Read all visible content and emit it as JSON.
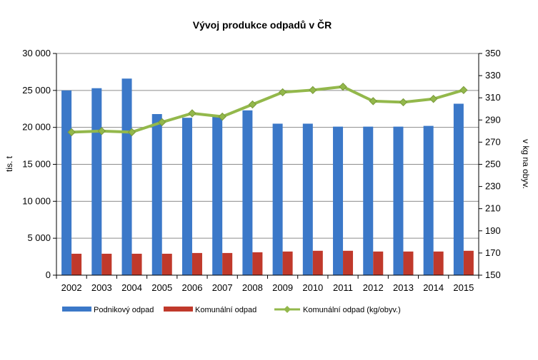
{
  "chart_data": {
    "type": "bar",
    "title": "Vývoj produkce odpadů v ČR",
    "ylabel_left": "tis. t",
    "ylabel_right": "v kg na obyv.",
    "categories": [
      "2002",
      "2003",
      "2004",
      "2005",
      "2006",
      "2007",
      "2008",
      "2009",
      "2010",
      "2011",
      "2012",
      "2013",
      "2014",
      "2015"
    ],
    "ylim_left": [
      0,
      30000
    ],
    "ylim_right": [
      150,
      350
    ],
    "yticks_left": [
      "0",
      "5 000",
      "10 000",
      "15 000",
      "20 000",
      "25 000",
      "30 000"
    ],
    "yticks_right": [
      "150",
      "170",
      "190",
      "210",
      "230",
      "250",
      "270",
      "290",
      "310",
      "330",
      "350"
    ],
    "grid": true,
    "legend_position": "bottom",
    "series": [
      {
        "name": "Podnikový odpad",
        "type": "bar",
        "axis": "left",
        "color": "#3b78c8",
        "values": [
          25000,
          25300,
          26600,
          21800,
          21300,
          21500,
          22300,
          20500,
          20500,
          20100,
          20100,
          20100,
          20200,
          23200
        ]
      },
      {
        "name": "Komunální odpad",
        "type": "bar",
        "axis": "left",
        "color": "#c0392b",
        "values": [
          2900,
          2900,
          2900,
          2900,
          3000,
          3000,
          3100,
          3200,
          3300,
          3300,
          3200,
          3200,
          3200,
          3300
        ]
      },
      {
        "name": "Komunální odpad (kg/obyv.)",
        "type": "line",
        "axis": "right",
        "color": "#93b84b",
        "values": [
          279,
          280,
          279,
          288,
          296,
          293,
          304,
          315,
          317,
          320,
          307,
          306,
          309,
          317
        ]
      }
    ]
  }
}
